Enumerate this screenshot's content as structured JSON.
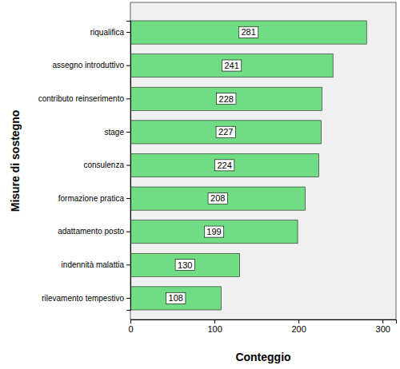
{
  "chart_data": {
    "type": "bar",
    "orientation": "horizontal",
    "categories": [
      "riqualifica",
      "assegno introduttivo",
      "contributo reinserimento",
      "stage",
      "consulenza",
      "formazione pratica",
      "adattamento posto",
      "indennità malattia",
      "rilevamento tempestivo"
    ],
    "values": [
      281,
      241,
      228,
      227,
      224,
      208,
      199,
      130,
      108
    ],
    "color": "#70dc84",
    "xlabel": "Conteggio",
    "ylabel": "Misure di sostegno",
    "xlim": [
      0,
      316
    ],
    "xticks": [
      0,
      100,
      200,
      300
    ],
    "data_labels": true,
    "grid": false
  }
}
